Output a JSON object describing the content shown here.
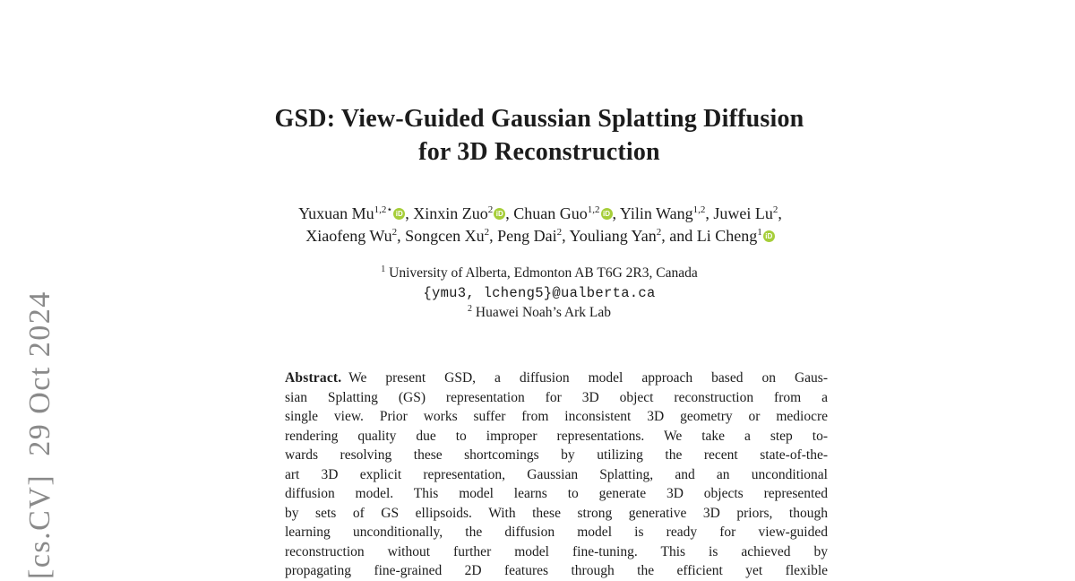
{
  "page": {
    "background": "#ffffff",
    "text_color": "#1c1c1c"
  },
  "watermark": {
    "text": "[cs.CV]  29 Oct 2024",
    "color": "#8a8a8a"
  },
  "title": {
    "line1": "GSD: View-Guided Gaussian Splatting Diffusion",
    "line2": "for 3D Reconstruction"
  },
  "orcid": {
    "label": "iD",
    "color": "#a6ce39"
  },
  "authors": {
    "line1": [
      {
        "name": "Yuxuan Mu",
        "sup": "1,2⋆",
        "orcid": true,
        "sep": ", "
      },
      {
        "name": "Xinxin Zuo",
        "sup": "2",
        "orcid": true,
        "sep": ", "
      },
      {
        "name": "Chuan Guo",
        "sup": "1,2",
        "orcid": true,
        "sep": ", "
      },
      {
        "name": "Yilin Wang",
        "sup": "1,2",
        "orcid": false,
        "sep": ", "
      },
      {
        "name": "Juwei Lu",
        "sup": "2",
        "orcid": false,
        "sep": ","
      }
    ],
    "line2": [
      {
        "name": "Xiaofeng Wu",
        "sup": "2",
        "orcid": false,
        "sep": ", "
      },
      {
        "name": "Songcen Xu",
        "sup": "2",
        "orcid": false,
        "sep": ", "
      },
      {
        "name": "Peng Dai",
        "sup": "2",
        "orcid": false,
        "sep": ", "
      },
      {
        "name": "Youliang Yan",
        "sup": "2",
        "orcid": false,
        "sep": ", and "
      },
      {
        "name": "Li Cheng",
        "sup": "1",
        "orcid": true,
        "sep": ""
      }
    ]
  },
  "affiliations": [
    {
      "sup": "1",
      "text": "University of Alberta, Edmonton AB T6G 2R3, Canada"
    },
    {
      "sup": "2",
      "text": "Huawei Noah’s Ark Lab"
    }
  ],
  "email": "{ymu3, lcheng5}@ualberta.ca",
  "abstract": {
    "label": "Abstract.",
    "lines": [
      "We present GSD, a diffusion model approach based on Gaus-",
      "sian Splatting (GS) representation for 3D object reconstruction from a",
      "single view. Prior works suffer from inconsistent 3D geometry or mediocre",
      "rendering quality due to improper representations. We take a step to-",
      "wards resolving these shortcomings by utilizing the recent state-of-the-",
      "art 3D explicit representation, Gaussian Splatting, and an unconditional",
      "diffusion model. This model learns to generate 3D objects represented",
      "by sets of GS ellipsoids. With these strong generative 3D priors, though",
      "learning unconditionally, the diffusion model is ready for view-guided",
      "reconstruction without further model fine-tuning. This is achieved by",
      "propagating fine-grained 2D features through the efficient yet flexible"
    ]
  }
}
